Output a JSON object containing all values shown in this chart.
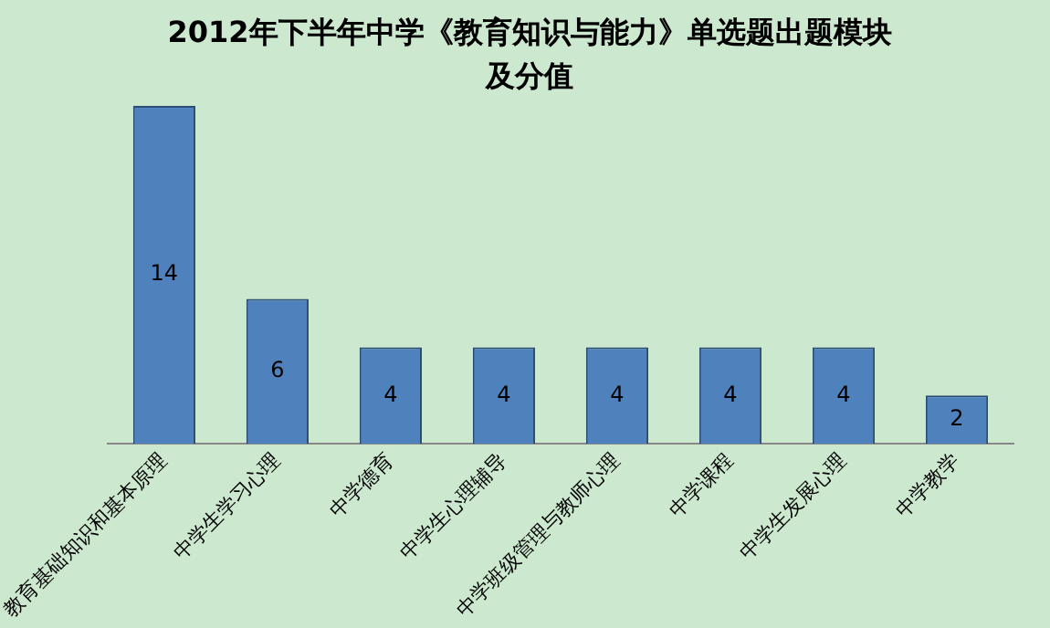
{
  "chart_data": {
    "type": "bar",
    "title": "2012年下半年中学《教育知识与能力》单选题出题模块及分值",
    "categories": [
      "教育基础知识和基本原理",
      "中学生学习心理",
      "中学德育",
      "中学生心理辅导",
      "中学班级管理与教师心理",
      "中学课程",
      "中学生发展心理",
      "中学教学"
    ],
    "values": [
      14,
      6,
      4,
      4,
      4,
      4,
      4,
      2
    ],
    "color": "#4f81bd",
    "data_labels": true,
    "grid": false,
    "legend": false,
    "tick_labels": "x"
  }
}
